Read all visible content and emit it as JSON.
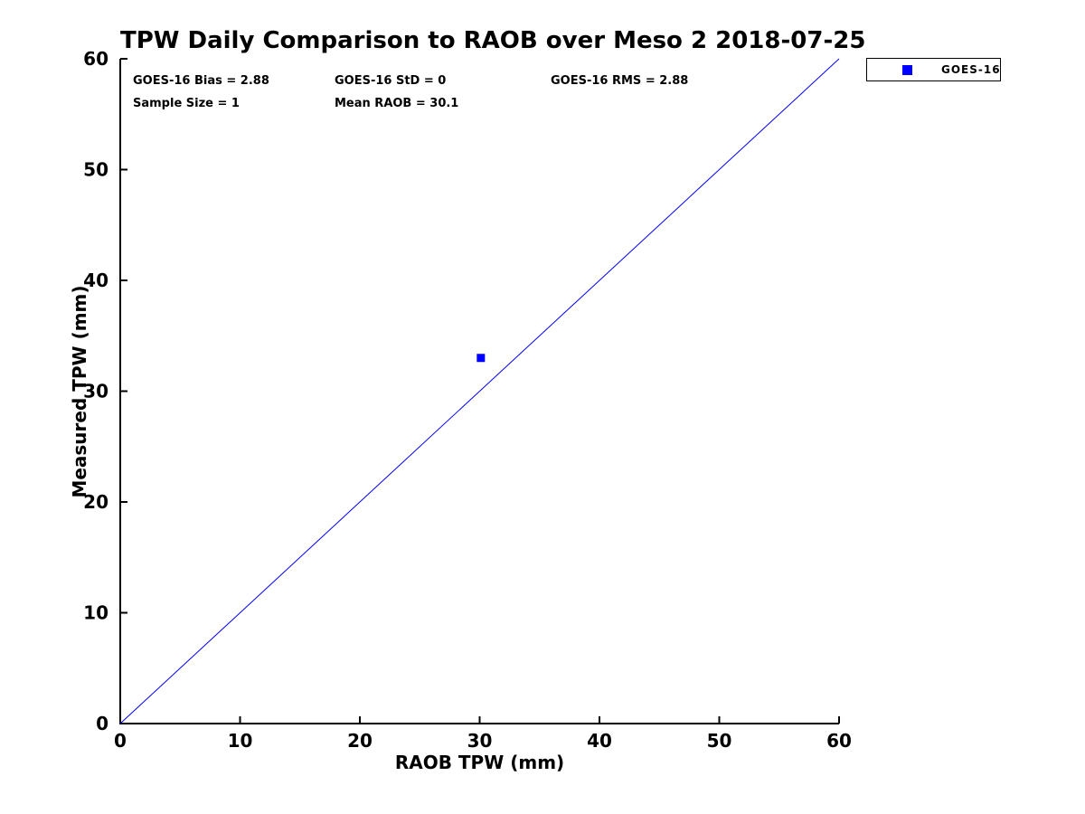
{
  "stats": {
    "bias": "GOES-16 Bias = 2.88",
    "std": "GOES-16 StD = 0",
    "rms": "GOES-16 RMS = 2.88",
    "sample_size": "Sample Size = 1",
    "mean_raob": "Mean RAOB = 30.1"
  },
  "legend": {
    "label": "GOES-16",
    "marker": "filled-square",
    "color": "#0000ff",
    "position": "top-right-outside"
  },
  "colors": {
    "accent_blue": "#0000ff",
    "text": "#000000",
    "background": "#ffffff",
    "axis": "#000000"
  },
  "chart_data": {
    "type": "scatter",
    "title": "TPW Daily Comparison to RAOB over Meso 2 2018-07-25",
    "xlabel": "RAOB TPW (mm)",
    "ylabel": "Measured TPW (mm)",
    "xlim": [
      0,
      60
    ],
    "ylim": [
      0,
      60
    ],
    "xticks": [
      0,
      10,
      20,
      30,
      40,
      50,
      60
    ],
    "yticks": [
      0,
      10,
      20,
      30,
      40,
      50,
      60
    ],
    "grid": false,
    "box": "open-left-bottom",
    "tick_direction": "in",
    "series": [
      {
        "name": "one-to-one-reference-line",
        "type": "line",
        "color": "#0000ff",
        "width": 1,
        "points": [
          [
            0,
            0
          ],
          [
            60,
            60
          ]
        ]
      },
      {
        "name": "GOES-16",
        "type": "scatter",
        "marker": "square",
        "marker_size": 9,
        "color": "#0000ff",
        "points": [
          [
            30.1,
            33.0
          ]
        ]
      }
    ]
  }
}
